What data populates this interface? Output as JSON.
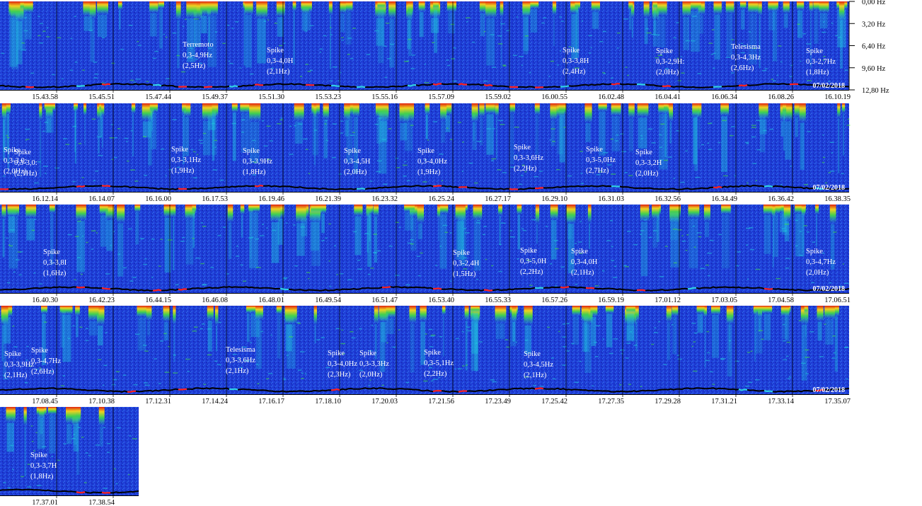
{
  "chart_data": {
    "type": "heatmap",
    "title": "",
    "frequency_axis": {
      "labels": [
        "0,00 Hz",
        "3,20 Hz",
        "6,40 Hz",
        "9,60 Hz",
        "12,80 Hz"
      ],
      "values": [
        0.0,
        3.2,
        6.4,
        9.6,
        12.8
      ],
      "unit": "Hz"
    },
    "colors": {
      "background_blue": "#1f3fd8",
      "deep_blue": "#0a1fa8",
      "cyan": "#20c8e0",
      "green": "#40e040",
      "yellow": "#f0e020",
      "red": "#e02010",
      "trace_black": "#000000",
      "trace_red": "#ff2020",
      "trace_cyan": "#30d0e8"
    },
    "rows": [
      {
        "times": [
          "15.43.58",
          "15.45.51",
          "15.47.44",
          "15.49.37",
          "15.51.30",
          "15.53.23",
          "15.55.16",
          "15.57.09",
          "15.59.02",
          "16.00.55",
          "16.02.48",
          "16.04.41",
          "16.06.34",
          "16.08.26",
          "16.10.19"
        ],
        "date": "07/02/2018",
        "events": [
          {
            "type": "Terremoto",
            "range": "0,3-4,9Hz",
            "peak": "(2,5Hz)"
          },
          {
            "type": "Spike",
            "range": "0,3-4,0H",
            "peak": "(2,1Hz)"
          },
          {
            "type": "Spike",
            "range": "0,3-3,8H",
            "peak": "(2,4Hz)"
          },
          {
            "type": "Spike",
            "range": "0,3-2,9H:",
            "peak": "(2,0Hz)"
          },
          {
            "type": "Telesisma",
            "range": "0,3-4,3Hz",
            "peak": "(2,6Hz)"
          },
          {
            "type": "Spike",
            "range": "0,3-2,7Hz",
            "peak": "(1,8Hz)"
          }
        ]
      },
      {
        "times": [
          "16.12.14",
          "16.14.07",
          "16.16.00",
          "16.17.53",
          "16.19.46",
          "16.21.39",
          "16.23.32",
          "16.25.24",
          "16.27.17",
          "16.29.10",
          "16.31.03",
          "16.32.56",
          "16.34.49",
          "16.36.42",
          "16.38.35"
        ],
        "date": "07/02/2018",
        "events": [
          {
            "type": "Spike",
            "range": "0,3-3,0:",
            "peak": "(2,0Hz)"
          },
          {
            "type": "Spike",
            "range": "0,3-3,0:",
            "peak": "(2,1Hz)"
          },
          {
            "type": "Spike",
            "range": "0,3-3,1Hz",
            "peak": "(1,9Hz)"
          },
          {
            "type": "Spike",
            "range": "0,3-3,9Hz",
            "peak": "(1,8Hz)"
          },
          {
            "type": "Spike",
            "range": "0,3-4,5H",
            "peak": "(2,0Hz)"
          },
          {
            "type": "Spike",
            "range": "0,3-4,0Hz",
            "peak": "(1,9Hz)"
          },
          {
            "type": "Spike",
            "range": "0,3-3,6Hz",
            "peak": "(2,2Hz)"
          },
          {
            "type": "Spike",
            "range": "0,3-5,0Hz",
            "peak": "(2,7Hz)"
          },
          {
            "type": "Spike",
            "range": "0,3-3,2H",
            "peak": "(2,0Hz)"
          }
        ]
      },
      {
        "times": [
          "16.40.30",
          "16.42.23",
          "16.44.15",
          "16.46.08",
          "16.48.01",
          "16.49.54",
          "16.51.47",
          "16.53.40",
          "16.55.33",
          "16.57.26",
          "16.59.19",
          "17.01.12",
          "17.03.05",
          "17.04.58",
          "17.06.51"
        ],
        "date": "07/02/2018",
        "events": [
          {
            "type": "Spike",
            "range": "0,3-3,8I",
            "peak": "(1,6Hz)"
          },
          {
            "type": "Spike",
            "range": "0,3-2,4H",
            "peak": "(1,5Hz)"
          },
          {
            "type": "Spike",
            "range": "0,3-5,0H",
            "peak": "(2,2Hz)"
          },
          {
            "type": "Spike",
            "range": "0,3-4,0H",
            "peak": "(2,1Hz)"
          },
          {
            "type": "Spike",
            "range": "0,3-4,7Hz",
            "peak": "(2,0Hz)"
          }
        ]
      },
      {
        "times": [
          "17.08.45",
          "17.10.38",
          "17.12.31",
          "17.14.24",
          "17.16.17",
          "17.18.10",
          "17.20.03",
          "17.21.56",
          "17.23.49",
          "17.25.42",
          "17.27.35",
          "17.29.28",
          "17.31.21",
          "17.33.14",
          "17.35.07"
        ],
        "date": "07/02/2018",
        "events": [
          {
            "type": "Spike",
            "range": "0,3-3,9Hz",
            "peak": "(2,1Hz)"
          },
          {
            "type": "Spike",
            "range": "0,3-4,7Hz",
            "peak": "(2,6Hz)"
          },
          {
            "type": "Telesisma",
            "range": "0,3-3,6Hz",
            "peak": "(2,1Hz)"
          },
          {
            "type": "Spike",
            "range": "0,3-4,0Hz",
            "peak": "(2,3Hz)"
          },
          {
            "type": "Spike",
            "range": "0,3-3,3Hz",
            "peak": "(2,0Hz)"
          },
          {
            "type": "Spike",
            "range": "0,3-5,1Hz",
            "peak": "(2,2Hz)"
          },
          {
            "type": "Spike",
            "range": "0,3-4,5Hz",
            "peak": "(2,1Hz)"
          }
        ]
      },
      {
        "times": [
          "17.37.01",
          "17.38.54"
        ],
        "date": "",
        "events": [
          {
            "type": "Spike",
            "range": "0,3-3,7H",
            "peak": "(1,8Hz)"
          }
        ]
      }
    ]
  }
}
